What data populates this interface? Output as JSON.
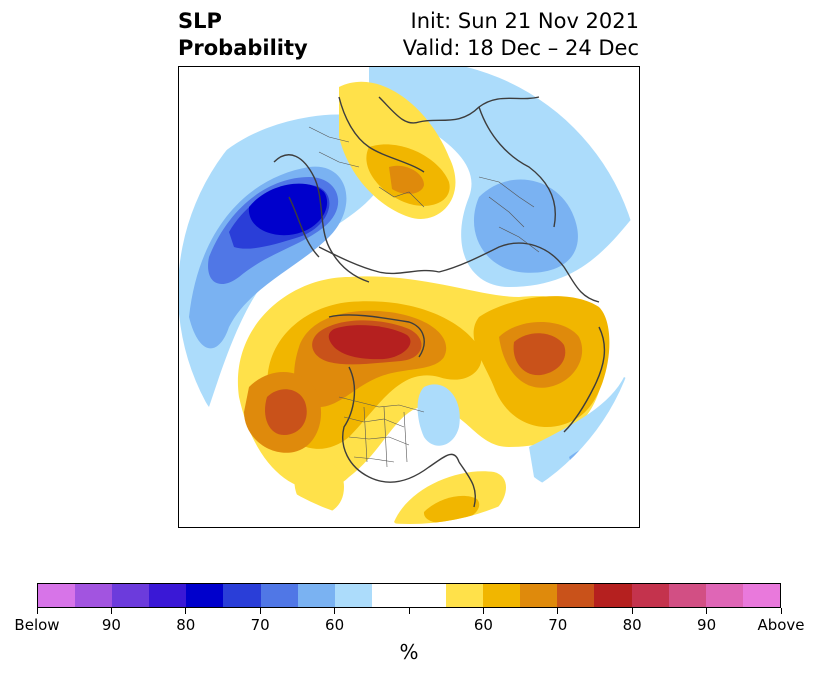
{
  "header": {
    "title_lines": [
      "SLP",
      "Probability"
    ],
    "init": "Init: Sun 21 Nov 2021",
    "valid": "Valid: 18 Dec – 24 Dec"
  },
  "colorbar": {
    "colors": [
      "#d774e8",
      "#a254e0",
      "#6c3bdc",
      "#3a18d6",
      "#0000cc",
      "#2a3ed8",
      "#5077e6",
      "#7ab2f2",
      "#acdcfb",
      "#ffffff",
      "#ffffff",
      "#ffe14a",
      "#f1b600",
      "#df8a0c",
      "#c9521a",
      "#b5201f",
      "#c4334d",
      "#d24f84",
      "#df66b6",
      "#e979dc"
    ],
    "tick_labels": [
      "Below",
      "90",
      "80",
      "70",
      "60",
      "",
      "60",
      "70",
      "80",
      "90",
      "Above"
    ],
    "unit": "%"
  }
}
